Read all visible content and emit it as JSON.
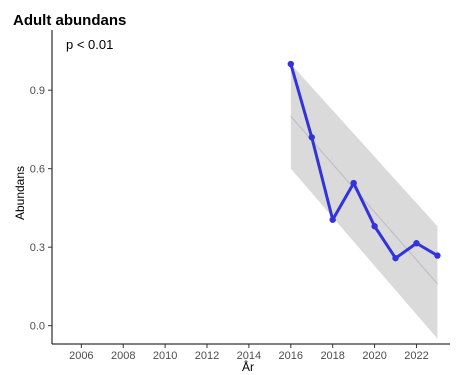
{
  "chart_data": {
    "type": "line",
    "title": "Adult abundans",
    "annotation": "p < 0.01",
    "xlabel": "År",
    "ylabel": "Abundans",
    "xlim": [
      2004.6,
      2023.6
    ],
    "ylim": [
      -0.07,
      1.13
    ],
    "x_ticks": [
      2006,
      2008,
      2010,
      2012,
      2014,
      2016,
      2018,
      2020,
      2022
    ],
    "y_ticks": [
      0.0,
      0.3,
      0.6,
      0.9
    ],
    "grid": false,
    "legend": "none",
    "series": [
      {
        "x": [
          2016,
          2017,
          2018,
          2019,
          2020,
          2021,
          2022,
          2023
        ],
        "values": [
          1.0,
          0.72,
          0.405,
          0.545,
          0.38,
          0.258,
          0.315,
          0.268
        ],
        "color": "#3333dd"
      }
    ],
    "trend": {
      "x": [
        2016,
        2023
      ],
      "y": [
        0.8,
        0.16
      ],
      "ci_lower": [
        0.6,
        -0.05
      ],
      "ci_upper": [
        1.0,
        0.38
      ],
      "color": "#c0c0c8",
      "band_color": "#d3d3d3"
    }
  }
}
